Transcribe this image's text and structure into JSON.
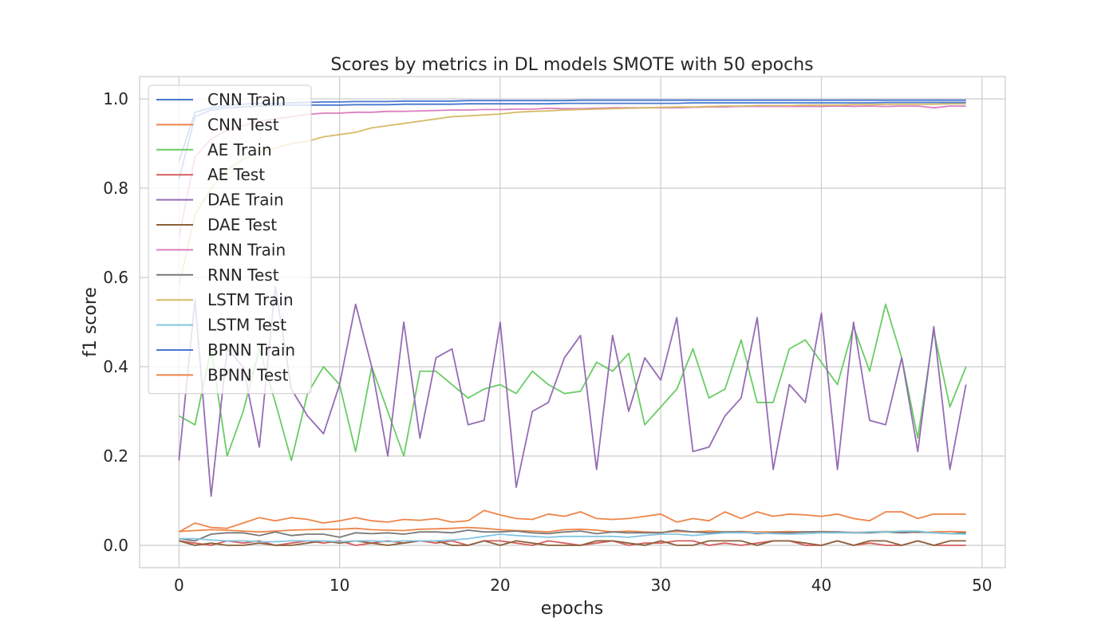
{
  "chart_data": {
    "type": "line",
    "title": "Scores by metrics in DL models SMOTE with 50 epochs",
    "xlabel": "epochs",
    "ylabel": "f1 score",
    "xlim": [
      -2.45,
      51.45
    ],
    "ylim": [
      -0.05,
      1.05
    ],
    "xticks": [
      0,
      10,
      20,
      30,
      40,
      50
    ],
    "xtick_labels": [
      "0",
      "10",
      "20",
      "30",
      "40",
      "50"
    ],
    "yticks": [
      0.0,
      0.2,
      0.4,
      0.6,
      0.8,
      1.0
    ],
    "ytick_labels": [
      "0.0",
      "0.2",
      "0.4",
      "0.6",
      "0.8",
      "1.0"
    ],
    "grid": true,
    "legend_position": "top-left",
    "x": [
      0,
      1,
      2,
      3,
      4,
      5,
      6,
      7,
      8,
      9,
      10,
      11,
      12,
      13,
      14,
      15,
      16,
      17,
      18,
      19,
      20,
      21,
      22,
      23,
      24,
      25,
      26,
      27,
      28,
      29,
      30,
      31,
      32,
      33,
      34,
      35,
      36,
      37,
      38,
      39,
      40,
      41,
      42,
      43,
      44,
      45,
      46,
      47,
      48,
      49
    ],
    "series": [
      {
        "name": "CNN Train",
        "color": "#4878d0",
        "values": [
          0.86,
          0.97,
          0.98,
          0.985,
          0.988,
          0.99,
          0.99,
          0.991,
          0.992,
          0.993,
          0.993,
          0.994,
          0.994,
          0.994,
          0.995,
          0.995,
          0.995,
          0.995,
          0.996,
          0.996,
          0.996,
          0.996,
          0.996,
          0.996,
          0.996,
          0.997,
          0.997,
          0.997,
          0.997,
          0.997,
          0.997,
          0.997,
          0.997,
          0.997,
          0.997,
          0.997,
          0.997,
          0.997,
          0.997,
          0.997,
          0.997,
          0.997,
          0.997,
          0.997,
          0.997,
          0.997,
          0.997,
          0.997,
          0.997,
          0.997
        ]
      },
      {
        "name": "CNN Test",
        "color": "#ee854a",
        "values": [
          0.031,
          0.033,
          0.035,
          0.034,
          0.032,
          0.03,
          0.032,
          0.034,
          0.035,
          0.036,
          0.036,
          0.038,
          0.035,
          0.034,
          0.033,
          0.036,
          0.037,
          0.038,
          0.04,
          0.038,
          0.035,
          0.033,
          0.032,
          0.03,
          0.035,
          0.036,
          0.034,
          0.03,
          0.032,
          0.03,
          0.029,
          0.031,
          0.03,
          0.032,
          0.03,
          0.031,
          0.03,
          0.03,
          0.031,
          0.03,
          0.031,
          0.03,
          0.029,
          0.03,
          0.031,
          0.03,
          0.029,
          0.03,
          0.031,
          0.03
        ]
      },
      {
        "name": "AE Train",
        "color": "#6acc64",
        "values": [
          0.29,
          0.27,
          0.44,
          0.2,
          0.3,
          0.44,
          0.32,
          0.19,
          0.34,
          0.4,
          0.36,
          0.21,
          0.4,
          0.3,
          0.2,
          0.39,
          0.39,
          0.36,
          0.33,
          0.35,
          0.36,
          0.34,
          0.39,
          0.36,
          0.34,
          0.345,
          0.41,
          0.39,
          0.43,
          0.27,
          0.31,
          0.35,
          0.44,
          0.33,
          0.35,
          0.46,
          0.32,
          0.32,
          0.44,
          0.46,
          0.41,
          0.36,
          0.49,
          0.39,
          0.54,
          0.42,
          0.24,
          0.48,
          0.31,
          0.4
        ]
      },
      {
        "name": "AE Test",
        "color": "#d65f5f",
        "values": [
          0.01,
          0.005,
          0.0,
          0.01,
          0.005,
          0.01,
          0.0,
          0.005,
          0.01,
          0.005,
          0.01,
          0.0,
          0.005,
          0.01,
          0.005,
          0.01,
          0.005,
          0.01,
          0.0,
          0.01,
          0.01,
          0.005,
          0.0,
          0.01,
          0.005,
          0.0,
          0.005,
          0.01,
          0.0,
          0.005,
          0.005,
          0.01,
          0.01,
          0.0,
          0.005,
          0.0,
          0.005,
          0.01,
          0.01,
          0.0,
          0.0,
          0.01,
          0.0,
          0.005,
          0.0,
          0.0,
          0.01,
          0.0,
          0.0,
          0.0
        ]
      },
      {
        "name": "DAE Train",
        "color": "#956cb4",
        "values": [
          0.19,
          0.55,
          0.11,
          0.44,
          0.4,
          0.22,
          0.58,
          0.35,
          0.29,
          0.25,
          0.36,
          0.54,
          0.4,
          0.2,
          0.5,
          0.24,
          0.42,
          0.44,
          0.27,
          0.28,
          0.5,
          0.13,
          0.3,
          0.32,
          0.42,
          0.47,
          0.17,
          0.47,
          0.3,
          0.42,
          0.37,
          0.51,
          0.21,
          0.22,
          0.29,
          0.33,
          0.51,
          0.17,
          0.36,
          0.32,
          0.52,
          0.17,
          0.5,
          0.28,
          0.27,
          0.42,
          0.21,
          0.49,
          0.17,
          0.36
        ]
      },
      {
        "name": "DAE Test",
        "color": "#8c613c",
        "values": [
          0.01,
          0.0,
          0.005,
          0.0,
          0.0,
          0.005,
          0.0,
          0.0,
          0.005,
          0.01,
          0.005,
          0.01,
          0.005,
          0.0,
          0.005,
          0.01,
          0.01,
          0.0,
          0.0,
          0.01,
          0.0,
          0.01,
          0.005,
          0.0,
          0.0,
          0.0,
          0.01,
          0.01,
          0.005,
          0.0,
          0.01,
          0.0,
          0.0,
          0.01,
          0.01,
          0.01,
          0.0,
          0.01,
          0.01,
          0.005,
          0.0,
          0.01,
          0.0,
          0.01,
          0.01,
          0.0,
          0.01,
          0.0,
          0.01,
          0.01
        ]
      },
      {
        "name": "RNN Train",
        "color": "#dc7ec0",
        "values": [
          0.69,
          0.87,
          0.91,
          0.93,
          0.94,
          0.95,
          0.955,
          0.96,
          0.965,
          0.968,
          0.968,
          0.97,
          0.97,
          0.972,
          0.972,
          0.973,
          0.974,
          0.975,
          0.975,
          0.976,
          0.976,
          0.977,
          0.977,
          0.979,
          0.978,
          0.978,
          0.979,
          0.98,
          0.98,
          0.98,
          0.98,
          0.98,
          0.981,
          0.982,
          0.982,
          0.983,
          0.983,
          0.983,
          0.983,
          0.983,
          0.983,
          0.984,
          0.983,
          0.984,
          0.983,
          0.984,
          0.984,
          0.98,
          0.984,
          0.984
        ]
      },
      {
        "name": "RNN Test",
        "color": "#797979",
        "values": [
          0.015,
          0.01,
          0.025,
          0.028,
          0.028,
          0.022,
          0.03,
          0.022,
          0.025,
          0.025,
          0.018,
          0.028,
          0.026,
          0.028,
          0.025,
          0.03,
          0.03,
          0.028,
          0.034,
          0.03,
          0.03,
          0.032,
          0.028,
          0.026,
          0.03,
          0.032,
          0.026,
          0.03,
          0.028,
          0.028,
          0.028,
          0.034,
          0.03,
          0.028,
          0.03,
          0.03,
          0.026,
          0.028,
          0.028,
          0.03,
          0.03,
          0.03,
          0.028,
          0.028,
          0.03,
          0.028,
          0.03,
          0.028,
          0.026,
          0.028
        ]
      },
      {
        "name": "LSTM Train",
        "color": "#d5bb67",
        "values": [
          0.58,
          0.74,
          0.8,
          0.84,
          0.865,
          0.88,
          0.89,
          0.9,
          0.905,
          0.915,
          0.92,
          0.925,
          0.935,
          0.94,
          0.945,
          0.95,
          0.955,
          0.96,
          0.962,
          0.964,
          0.966,
          0.97,
          0.972,
          0.973,
          0.975,
          0.976,
          0.977,
          0.978,
          0.979,
          0.98,
          0.981,
          0.982,
          0.982,
          0.983,
          0.984,
          0.984,
          0.985,
          0.985,
          0.985,
          0.986,
          0.986,
          0.986,
          0.987,
          0.987,
          0.988,
          0.988,
          0.988,
          0.988,
          0.989,
          0.989
        ]
      },
      {
        "name": "LSTM Test",
        "color": "#82c6e2",
        "values": [
          0.015,
          0.015,
          0.012,
          0.01,
          0.01,
          0.008,
          0.008,
          0.01,
          0.01,
          0.01,
          0.008,
          0.01,
          0.01,
          0.008,
          0.01,
          0.01,
          0.01,
          0.012,
          0.015,
          0.02,
          0.025,
          0.022,
          0.02,
          0.018,
          0.02,
          0.02,
          0.02,
          0.02,
          0.018,
          0.022,
          0.025,
          0.025,
          0.022,
          0.025,
          0.028,
          0.028,
          0.028,
          0.026,
          0.025,
          0.026,
          0.028,
          0.028,
          0.028,
          0.03,
          0.03,
          0.032,
          0.032,
          0.028,
          0.026,
          0.025
        ]
      },
      {
        "name": "BPNN Train",
        "color": "#4878d0",
        "values": [
          0.82,
          0.96,
          0.975,
          0.98,
          0.982,
          0.984,
          0.985,
          0.986,
          0.986,
          0.986,
          0.986,
          0.987,
          0.987,
          0.987,
          0.988,
          0.988,
          0.988,
          0.988,
          0.989,
          0.989,
          0.989,
          0.989,
          0.989,
          0.989,
          0.99,
          0.99,
          0.99,
          0.99,
          0.99,
          0.99,
          0.99,
          0.99,
          0.991,
          0.991,
          0.991,
          0.991,
          0.991,
          0.991,
          0.991,
          0.991,
          0.991,
          0.991,
          0.991,
          0.991,
          0.992,
          0.992,
          0.992,
          0.992,
          0.992,
          0.992
        ]
      },
      {
        "name": "BPNN Test",
        "color": "#ee854a",
        "values": [
          0.03,
          0.05,
          0.04,
          0.038,
          0.05,
          0.062,
          0.055,
          0.062,
          0.058,
          0.05,
          0.055,
          0.062,
          0.055,
          0.052,
          0.058,
          0.056,
          0.06,
          0.052,
          0.055,
          0.078,
          0.068,
          0.06,
          0.058,
          0.07,
          0.065,
          0.075,
          0.06,
          0.058,
          0.06,
          0.065,
          0.07,
          0.052,
          0.06,
          0.055,
          0.075,
          0.06,
          0.075,
          0.065,
          0.07,
          0.068,
          0.065,
          0.07,
          0.06,
          0.055,
          0.075,
          0.075,
          0.06,
          0.07,
          0.07,
          0.07
        ]
      }
    ]
  }
}
